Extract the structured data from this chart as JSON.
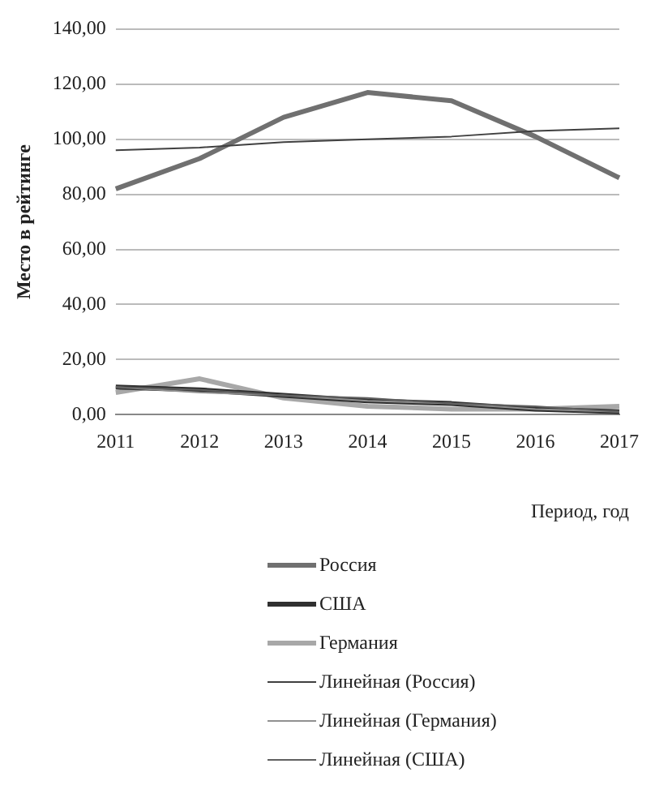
{
  "chart_data": {
    "type": "line",
    "ylabel": "Место в рейтинге",
    "xlabel": "Период, год",
    "categories": [
      "2011",
      "2012",
      "2013",
      "2014",
      "2015",
      "2016",
      "2017"
    ],
    "series": [
      {
        "name": "Россия",
        "color": "#707070",
        "values": [
          82,
          93,
          108,
          117,
          114,
          101,
          86
        ]
      },
      {
        "name": "США",
        "color": "#303030",
        "values": [
          10,
          9,
          7,
          5,
          4,
          2,
          1
        ]
      },
      {
        "name": "Германия",
        "color": "#a8a8a8",
        "values": [
          8,
          13,
          6,
          3,
          2,
          2,
          3
        ]
      },
      {
        "name": "Линейная (Россия)",
        "color": "#404040",
        "line_style": "solid",
        "values": [
          96,
          97,
          99,
          100,
          101,
          103,
          104
        ]
      },
      {
        "name": "Линейная (Германия)",
        "color": "#909090",
        "line_style": "solid",
        "values": [
          10,
          8,
          7,
          5,
          4,
          2,
          1
        ]
      },
      {
        "name": "Линейная (США)",
        "color": "#606060",
        "line_style": "solid",
        "values": [
          10,
          9,
          7,
          6,
          4,
          3,
          1
        ]
      }
    ],
    "ylim": [
      0,
      140
    ],
    "yticks": [
      {
        "value": 0,
        "label": "0,00"
      },
      {
        "value": 20,
        "label": "20,00"
      },
      {
        "value": 40,
        "label": "40,00"
      },
      {
        "value": 60,
        "label": "60,00"
      },
      {
        "value": 80,
        "label": "80,00"
      },
      {
        "value": 100,
        "label": "100,00"
      },
      {
        "value": 120,
        "label": "120,00"
      },
      {
        "value": 140,
        "label": "140,00"
      }
    ],
    "grid": "y",
    "legend": "bottom",
    "marker": "none"
  }
}
